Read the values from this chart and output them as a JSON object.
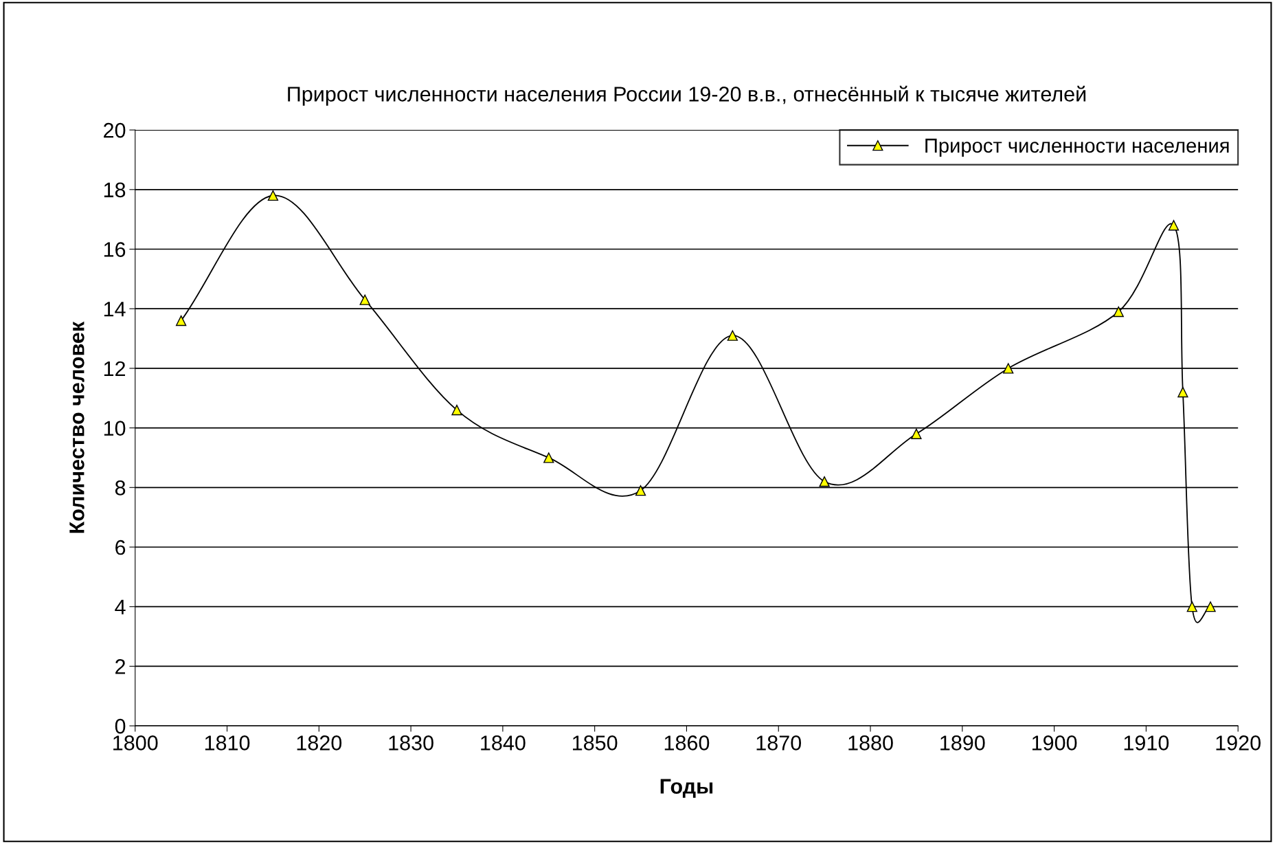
{
  "chart_data": {
    "type": "line",
    "title": "Прирост численности населения России 19-20 в.в., отнесённый к тысяче жителей",
    "xlabel": "Годы",
    "ylabel": "Количество человек",
    "x": [
      1805,
      1815,
      1825,
      1835,
      1845,
      1855,
      1865,
      1875,
      1885,
      1895,
      1907,
      1913,
      1914,
      1915,
      1917
    ],
    "series": [
      {
        "name": "Прирост численности населения",
        "color": "#000000",
        "values": [
          13.6,
          17.8,
          14.3,
          10.6,
          9.0,
          7.9,
          13.1,
          8.2,
          9.8,
          12.0,
          13.9,
          16.8,
          11.2,
          4.0,
          4.0
        ]
      }
    ],
    "xlim": [
      1800,
      1920
    ],
    "xticks": [
      1800,
      1810,
      1820,
      1830,
      1840,
      1850,
      1860,
      1870,
      1880,
      1890,
      1900,
      1910,
      1920
    ],
    "ylim": [
      0,
      20
    ],
    "yticks": [
      0,
      2,
      4,
      6,
      8,
      10,
      12,
      14,
      16,
      18,
      20
    ],
    "grid": "y",
    "legend": "top right",
    "marker": "triangle",
    "line_style": "solid"
  }
}
